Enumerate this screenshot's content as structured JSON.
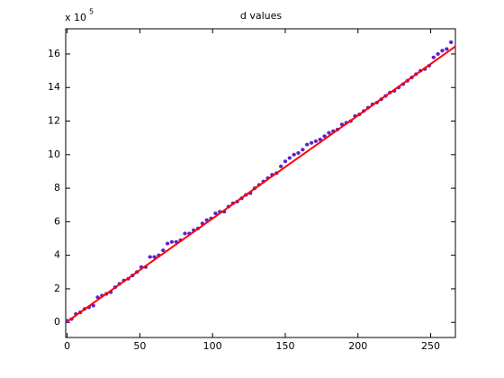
{
  "chart_data": {
    "type": "scatter",
    "title": "d values",
    "y_multiplier": "x 10",
    "y_multiplier_exponent": "5",
    "xlim": [
      -1,
      267
    ],
    "ylim": [
      -0.9,
      17.5
    ],
    "xticks": [
      0,
      50,
      100,
      150,
      200,
      250
    ],
    "yticks": [
      0,
      2,
      4,
      6,
      8,
      10,
      12,
      14,
      16
    ],
    "series": [
      {
        "color": "#5b22cf",
        "x": [
          0,
          3,
          6,
          9,
          12,
          15,
          18,
          21,
          24,
          27,
          30,
          33,
          36,
          39,
          42,
          45,
          48,
          51,
          54,
          57,
          60,
          63,
          66,
          69,
          72,
          75,
          78,
          81,
          84,
          87,
          90,
          93,
          96,
          99,
          102,
          105,
          108,
          111,
          114,
          117,
          120,
          123,
          126,
          129,
          132,
          135,
          138,
          141,
          144,
          147,
          150,
          153,
          156,
          159,
          162,
          165,
          168,
          171,
          174,
          177,
          180,
          183,
          186,
          189,
          192,
          195,
          198,
          201,
          204,
          207,
          210,
          213,
          216,
          219,
          222,
          225,
          228,
          231,
          234,
          237,
          240,
          243,
          246,
          249,
          252,
          255,
          258,
          261,
          264
        ],
        "values": [
          0.1,
          0.2,
          0.5,
          0.6,
          0.8,
          0.9,
          1.0,
          1.5,
          1.6,
          1.7,
          1.8,
          2.1,
          2.3,
          2.5,
          2.6,
          2.8,
          3.0,
          3.3,
          3.3,
          3.9,
          3.9,
          4.0,
          4.3,
          4.7,
          4.8,
          4.8,
          4.9,
          5.3,
          5.3,
          5.5,
          5.6,
          5.9,
          6.1,
          6.2,
          6.5,
          6.6,
          6.6,
          6.9,
          7.1,
          7.2,
          7.4,
          7.6,
          7.7,
          8.0,
          8.2,
          8.4,
          8.6,
          8.8,
          8.9,
          9.3,
          9.6,
          9.8,
          10.0,
          10.1,
          10.3,
          10.6,
          10.7,
          10.8,
          10.9,
          11.1,
          11.3,
          11.4,
          11.5,
          11.8,
          11.9,
          12.0,
          12.3,
          12.4,
          12.6,
          12.8,
          13.0,
          13.1,
          13.3,
          13.5,
          13.7,
          13.8,
          14.0,
          14.2,
          14.4,
          14.6,
          14.8,
          15.0,
          15.1,
          15.3,
          15.8,
          16.0,
          16.2,
          16.3,
          16.7
        ]
      },
      {
        "color": "#ff0000",
        "style": "line",
        "x": [
          0,
          267
        ],
        "values": [
          0.05,
          16.45
        ]
      }
    ]
  }
}
